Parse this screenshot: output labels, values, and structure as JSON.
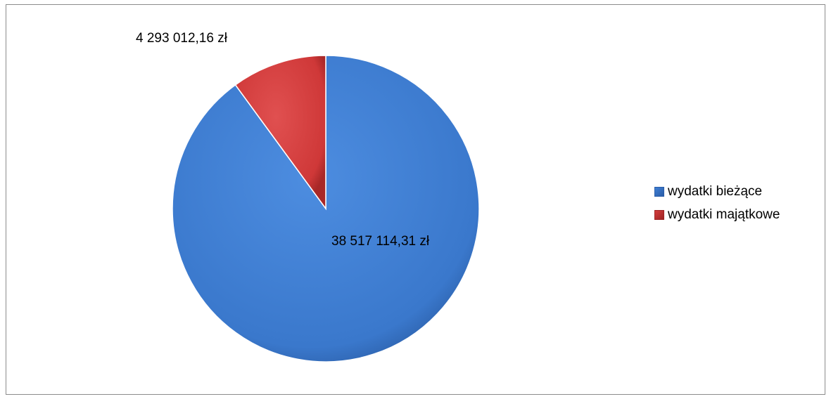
{
  "chart_data": {
    "type": "pie",
    "title": "",
    "slices": [
      {
        "name": "wydatki bieżące",
        "value": 38517114.31,
        "label": "38 517 114,31 zł",
        "color": "#3f7fd4",
        "color_dark": "#2a5da8"
      },
      {
        "name": "wydatki majątkowe",
        "value": 4293012.16,
        "label": "4 293 012,16 zł",
        "color": "#d43c3c",
        "color_dark": "#9e2424"
      }
    ],
    "start_angle_deg": 0,
    "direction": "clockwise",
    "legend_position": "right"
  }
}
